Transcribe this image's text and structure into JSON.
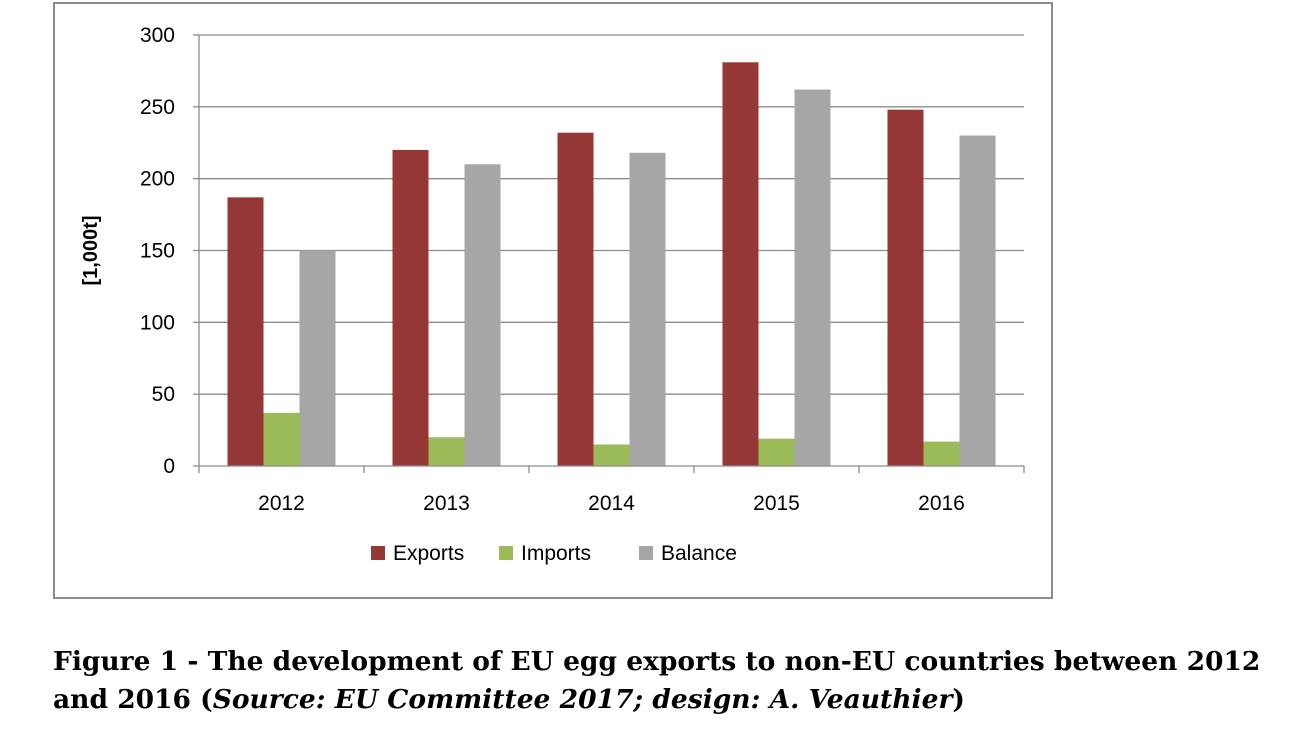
{
  "chart_data": {
    "type": "bar",
    "categories": [
      "2012",
      "2013",
      "2014",
      "2015",
      "2016"
    ],
    "series": [
      {
        "name": "Exports",
        "color": "#953735",
        "values": [
          187,
          220,
          232,
          281,
          248
        ]
      },
      {
        "name": "Imports",
        "color": "#9bbb59",
        "values": [
          37,
          20,
          15,
          19,
          17
        ]
      },
      {
        "name": "Balance",
        "color": "#a6a6a6",
        "values": [
          150,
          210,
          218,
          262,
          230
        ]
      }
    ],
    "ylabel": "[1,000t]",
    "xlabel": "",
    "ylim": [
      0,
      300
    ],
    "yticks": [
      0,
      50,
      100,
      150,
      200,
      250,
      300
    ],
    "grid": true,
    "legend": "bottom"
  },
  "caption": {
    "line1": "Figure 1 - The development of EU egg exports to non-EU countries between 2012",
    "line2_start": "and 2016 (",
    "line2_italic": "Source: EU Committee 2017; design: A. Veauthier",
    "line2_end": ")"
  }
}
